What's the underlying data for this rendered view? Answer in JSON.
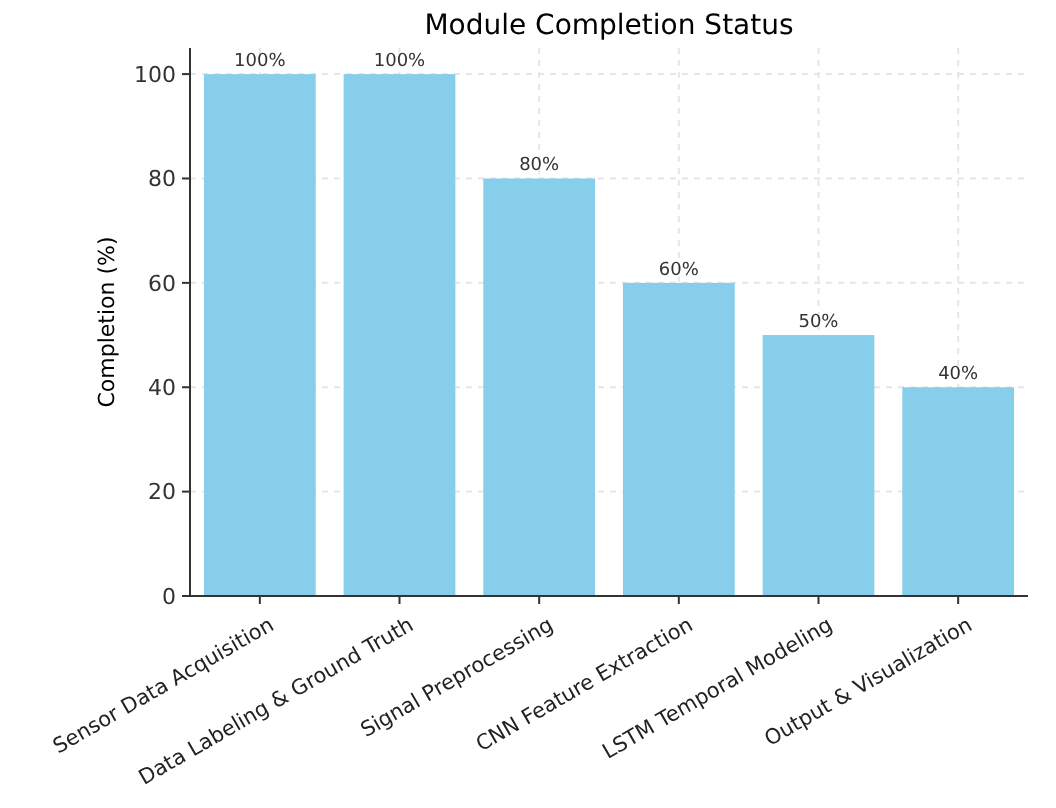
{
  "chart_data": {
    "type": "bar",
    "title": "Module Completion Status",
    "ylabel": "Completion (%)",
    "categories": [
      "Sensor Data Acquisition",
      "Data Labeling & Ground Truth",
      "Signal Preprocessing",
      "CNN Feature Extraction",
      "LSTM Temporal Modeling",
      "Output & Visualization"
    ],
    "values": [
      100,
      100,
      80,
      60,
      50,
      40
    ],
    "value_labels": [
      "100%",
      "100%",
      "80%",
      "60%",
      "50%",
      "40%"
    ],
    "color": "#87ceeb",
    "ylim": [
      0,
      105
    ],
    "yticks": [
      0,
      20,
      40,
      60,
      80,
      100
    ],
    "grid": true
  }
}
